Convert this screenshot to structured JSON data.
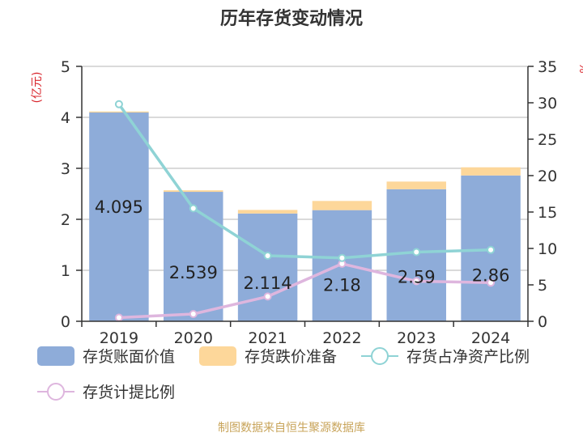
{
  "chart_data": {
    "type": "bar",
    "title": "历年存货变动情况",
    "source": "制图数据来自恒生聚源数据库",
    "categories": [
      "2019",
      "2020",
      "2021",
      "2022",
      "2023",
      "2024"
    ],
    "y_left": {
      "unit": "(亿元)",
      "min": 0,
      "max": 5,
      "ticks": [
        0,
        1,
        2,
        3,
        4,
        5
      ]
    },
    "y_right": {
      "unit": "%",
      "min": 0,
      "max": 35,
      "ticks": [
        0,
        5,
        10,
        15,
        20,
        25,
        30,
        35
      ]
    },
    "series": [
      {
        "name": "存货账面价值",
        "kind": "bar",
        "axis": "left",
        "color": "#8eacd9",
        "values": [
          4.095,
          2.539,
          2.114,
          2.18,
          2.59,
          2.86
        ],
        "labels": [
          "4.095",
          "2.539",
          "2.114",
          "2.18",
          "2.59",
          "2.86"
        ]
      },
      {
        "name": "存货跌价准备",
        "kind": "bar-stack",
        "axis": "left",
        "color": "#fdd79a",
        "values": [
          0.02,
          0.03,
          0.07,
          0.18,
          0.15,
          0.16
        ]
      },
      {
        "name": "存货占净资产比例",
        "kind": "line",
        "axis": "right",
        "color": "#8fd3d5",
        "values": [
          29.8,
          15.5,
          9.0,
          8.7,
          9.5,
          9.8
        ]
      },
      {
        "name": "存货计提比例",
        "kind": "line",
        "axis": "right",
        "color": "#deb6de",
        "values": [
          0.5,
          1.0,
          3.4,
          7.9,
          5.5,
          5.3
        ]
      }
    ],
    "grid": true
  }
}
